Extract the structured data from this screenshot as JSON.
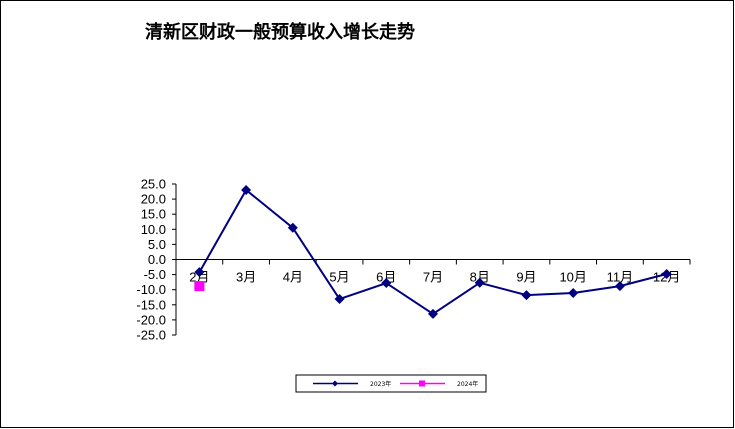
{
  "chart_data": {
    "type": "line",
    "title": "清新区财政一般预算收入增长走势",
    "categories": [
      "2月",
      "3月",
      "4月",
      "5月",
      "6月",
      "7月",
      "8月",
      "9月",
      "10月",
      "11月",
      "12月"
    ],
    "series": [
      {
        "name": "2023年",
        "color": "#000080",
        "marker": "diamond",
        "values": [
          -4.2,
          23.0,
          10.5,
          -13.1,
          -7.8,
          -18.0,
          -7.7,
          -11.8,
          -11.1,
          -8.8,
          -4.8
        ]
      },
      {
        "name": "2024年",
        "color": "#FF00FF",
        "marker": "square",
        "values": [
          -8.8,
          null,
          null,
          null,
          null,
          null,
          null,
          null,
          null,
          null,
          null
        ]
      }
    ],
    "yticks": [
      "25.0",
      "20.0",
      "15.0",
      "10.0",
      "5.0",
      "0.0",
      "-5.0",
      "-10.0",
      "-15.0",
      "-20.0",
      "-25.0"
    ],
    "ylim": [
      -25,
      25
    ],
    "grid": false,
    "legend": "bottom"
  }
}
